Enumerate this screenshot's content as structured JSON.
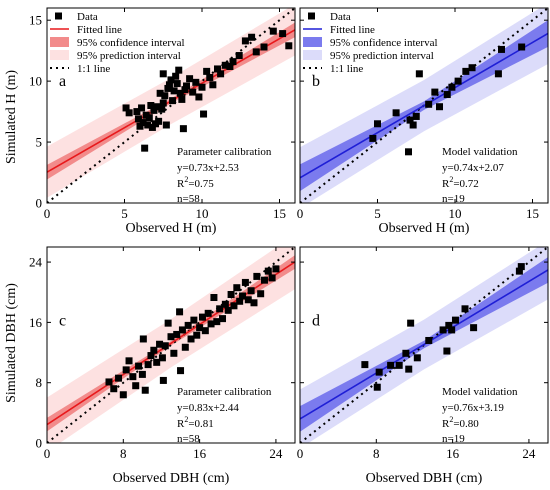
{
  "colors": {
    "red_line": "#e8191c",
    "red_ci": "#f28b8b",
    "red_pi": "#fde1e1",
    "blue_line": "#1f1fd6",
    "blue_ci": "#7b7bee",
    "blue_pi": "#dcdcfa",
    "points": "#000000"
  },
  "legend": {
    "data": "Data",
    "fitted": "Fitted line",
    "ci": "95% confidence interval",
    "pi": "95% prediction interval",
    "one_to_one": "1:1 line"
  },
  "axes": {
    "y_top": "Simulated H (m)",
    "y_bottom": "Simulated DBH (cm)",
    "x_top": "Observed H (m)",
    "x_bottom": "Observed DBH (cm)"
  },
  "chart_data": [
    {
      "panel": "a",
      "type": "scatter",
      "color": "red",
      "xlabel": "Observed H (m)",
      "ylabel": "Simulated H (m)",
      "xlim": [
        0,
        16
      ],
      "ylim": [
        0,
        16
      ],
      "xticks": [
        0,
        5,
        10,
        15
      ],
      "yticks": [
        0,
        5,
        10,
        15
      ],
      "fit": {
        "slope": 0.73,
        "intercept": 2.53
      },
      "ci_half": [
        0.6,
        0.2,
        0.6
      ],
      "pi_half": [
        2.1,
        1.9,
        2.1
      ],
      "legend": true,
      "stats": {
        "title": "Parameter calibration",
        "eq": "y=0.73x+2.53",
        "r2_prefix": "R",
        "r2_sup": "2",
        "r2_val": "=0.75",
        "n": "n=58"
      },
      "points": [
        [
          5.1,
          7.8
        ],
        [
          5.3,
          7.4
        ],
        [
          5.8,
          7.5
        ],
        [
          5.9,
          6.9
        ],
        [
          6.0,
          6.3
        ],
        [
          6.1,
          7.8
        ],
        [
          6.2,
          6.6
        ],
        [
          6.3,
          4.5
        ],
        [
          6.4,
          7.2
        ],
        [
          6.5,
          6.4
        ],
        [
          6.6,
          7.0
        ],
        [
          6.7,
          8.0
        ],
        [
          6.8,
          6.2
        ],
        [
          6.9,
          7.6
        ],
        [
          7.0,
          6.5
        ],
        [
          7.1,
          7.9
        ],
        [
          7.2,
          6.7
        ],
        [
          7.3,
          9.0
        ],
        [
          7.4,
          7.7
        ],
        [
          7.5,
          10.6
        ],
        [
          7.5,
          8.2
        ],
        [
          7.6,
          8.8
        ],
        [
          7.7,
          6.4
        ],
        [
          7.8,
          9.4
        ],
        [
          7.9,
          9.7
        ],
        [
          8.0,
          10.1
        ],
        [
          8.1,
          8.4
        ],
        [
          8.2,
          9.2
        ],
        [
          8.3,
          10.4
        ],
        [
          8.4,
          9.8
        ],
        [
          8.5,
          10.9
        ],
        [
          8.6,
          9.0
        ],
        [
          8.7,
          8.5
        ],
        [
          8.8,
          6.1
        ],
        [
          8.9,
          9.3
        ],
        [
          9.0,
          9.6
        ],
        [
          9.2,
          10.2
        ],
        [
          9.4,
          9.1
        ],
        [
          9.6,
          9.9
        ],
        [
          9.8,
          8.7
        ],
        [
          10.0,
          9.5
        ],
        [
          10.1,
          7.3
        ],
        [
          10.3,
          10.8
        ],
        [
          10.5,
          10.3
        ],
        [
          10.7,
          9.7
        ],
        [
          11.0,
          11.0
        ],
        [
          11.2,
          10.6
        ],
        [
          11.5,
          11.3
        ],
        [
          11.8,
          11.2
        ],
        [
          12.0,
          11.6
        ],
        [
          12.4,
          12.1
        ],
        [
          12.8,
          13.3
        ],
        [
          13.2,
          13.6
        ],
        [
          13.5,
          12.4
        ],
        [
          14.0,
          12.8
        ],
        [
          14.6,
          14.1
        ],
        [
          15.2,
          13.9
        ],
        [
          15.6,
          12.9
        ]
      ]
    },
    {
      "panel": "b",
      "type": "scatter",
      "color": "blue",
      "xlabel": "Observed H (m)",
      "ylabel": "Simulated H (m)",
      "xlim": [
        0,
        16
      ],
      "ylim": [
        0,
        16
      ],
      "xticks": [
        0,
        5,
        10,
        15
      ],
      "yticks": [
        0,
        5,
        10,
        15
      ],
      "fit": {
        "slope": 0.74,
        "intercept": 2.07
      },
      "ci_half": [
        1.1,
        0.35,
        1.1
      ],
      "pi_half": [
        2.5,
        2.1,
        2.5
      ],
      "legend": true,
      "stats": {
        "title": "Model validation",
        "eq": "y=0.74x+2.07",
        "r2_prefix": "R",
        "r2_sup": "2",
        "r2_val": "=0.72",
        "n": "n=19"
      },
      "points": [
        [
          4.7,
          5.3
        ],
        [
          5.0,
          6.5
        ],
        [
          6.2,
          7.4
        ],
        [
          7.0,
          4.2
        ],
        [
          7.1,
          6.8
        ],
        [
          7.3,
          6.4
        ],
        [
          7.5,
          7.1
        ],
        [
          7.7,
          10.6
        ],
        [
          8.3,
          8.1
        ],
        [
          8.7,
          9.1
        ],
        [
          9.0,
          7.9
        ],
        [
          9.5,
          8.9
        ],
        [
          9.8,
          9.5
        ],
        [
          10.2,
          10.0
        ],
        [
          10.7,
          10.8
        ],
        [
          11.1,
          11.1
        ],
        [
          12.8,
          10.6
        ],
        [
          13.0,
          12.6
        ],
        [
          14.3,
          12.8
        ]
      ]
    },
    {
      "panel": "c",
      "type": "scatter",
      "color": "red",
      "xlabel": "Observed DBH (cm)",
      "ylabel": "Simulated DBH (cm)",
      "xlim": [
        0,
        26
      ],
      "ylim": [
        0,
        26
      ],
      "xticks": [
        0,
        8,
        16,
        24
      ],
      "yticks": [
        0,
        8,
        16,
        24
      ],
      "fit": {
        "slope": 0.83,
        "intercept": 2.44
      },
      "ci_half": [
        0.9,
        0.3,
        0.9
      ],
      "pi_half": [
        3.6,
        3.2,
        3.6
      ],
      "legend": false,
      "stats": {
        "title": "Parameter calibration",
        "eq": "y=0.83x+2.44",
        "r2_prefix": "R",
        "r2_sup": "2",
        "r2_val": "=0.81",
        "n": "n=58"
      },
      "points": [
        [
          6.5,
          8.1
        ],
        [
          7.0,
          7.2
        ],
        [
          7.5,
          8.6
        ],
        [
          8.0,
          6.4
        ],
        [
          8.3,
          9.7
        ],
        [
          8.6,
          10.9
        ],
        [
          9.0,
          8.8
        ],
        [
          9.3,
          7.6
        ],
        [
          9.6,
          10.2
        ],
        [
          10.0,
          9.1
        ],
        [
          10.3,
          7.0
        ],
        [
          10.6,
          10.4
        ],
        [
          10.9,
          11.6
        ],
        [
          11.2,
          12.3
        ],
        [
          11.5,
          10.7
        ],
        [
          11.8,
          13.1
        ],
        [
          12.1,
          11.3
        ],
        [
          12.4,
          12.9
        ],
        [
          12.7,
          15.9
        ],
        [
          13.0,
          14.1
        ],
        [
          13.3,
          11.9
        ],
        [
          13.6,
          14.4
        ],
        [
          13.9,
          17.4
        ],
        [
          14.2,
          15.0
        ],
        [
          14.5,
          12.7
        ],
        [
          14.8,
          15.6
        ],
        [
          15.1,
          13.8
        ],
        [
          15.4,
          16.3
        ],
        [
          15.7,
          14.3
        ],
        [
          16.0,
          15.3
        ],
        [
          16.3,
          16.7
        ],
        [
          16.6,
          14.9
        ],
        [
          16.9,
          17.2
        ],
        [
          17.2,
          15.8
        ],
        [
          17.5,
          19.3
        ],
        [
          17.8,
          16.1
        ],
        [
          18.1,
          17.8
        ],
        [
          18.4,
          16.5
        ],
        [
          18.7,
          18.4
        ],
        [
          19.0,
          17.6
        ],
        [
          19.3,
          19.7
        ],
        [
          19.6,
          18.2
        ],
        [
          19.9,
          20.6
        ],
        [
          20.2,
          18.8
        ],
        [
          20.5,
          19.5
        ],
        [
          20.8,
          21.3
        ],
        [
          21.1,
          19.0
        ],
        [
          21.4,
          20.2
        ],
        [
          21.7,
          18.6
        ],
        [
          22.0,
          22.1
        ],
        [
          22.4,
          19.8
        ],
        [
          22.8,
          21.6
        ],
        [
          23.2,
          22.8
        ],
        [
          23.6,
          21.9
        ],
        [
          24.0,
          23.1
        ],
        [
          10.1,
          13.8
        ],
        [
          14.0,
          9.6
        ],
        [
          12.2,
          8.3
        ]
      ]
    },
    {
      "panel": "d",
      "type": "scatter",
      "color": "blue",
      "xlabel": "Observed DBH (cm)",
      "ylabel": "Simulated DBH (cm)",
      "xlim": [
        0,
        26
      ],
      "ylim": [
        0,
        26
      ],
      "xticks": [
        0,
        8,
        16,
        24
      ],
      "yticks": [
        0,
        8,
        16,
        24
      ],
      "fit": {
        "slope": 0.76,
        "intercept": 3.19
      },
      "ci_half": [
        1.7,
        0.5,
        1.7
      ],
      "pi_half": [
        3.9,
        3.3,
        3.9
      ],
      "legend": false,
      "stats": {
        "title": "Model validation",
        "eq": "y=0.76x+3.19",
        "r2_prefix": "R",
        "r2_sup": "2",
        "r2_val": "=0.80",
        "n": "n=19"
      },
      "points": [
        [
          6.8,
          10.4
        ],
        [
          8.1,
          7.4
        ],
        [
          8.3,
          9.4
        ],
        [
          9.5,
          10.3
        ],
        [
          10.4,
          10.3
        ],
        [
          11.1,
          11.9
        ],
        [
          11.4,
          9.8
        ],
        [
          11.6,
          15.9
        ],
        [
          12.3,
          11.3
        ],
        [
          13.5,
          13.6
        ],
        [
          15.0,
          15.0
        ],
        [
          15.4,
          12.2
        ],
        [
          15.6,
          15.6
        ],
        [
          15.9,
          15.0
        ],
        [
          16.3,
          16.3
        ],
        [
          17.3,
          17.8
        ],
        [
          18.2,
          15.3
        ],
        [
          23.0,
          22.8
        ],
        [
          23.2,
          23.4
        ]
      ]
    }
  ]
}
